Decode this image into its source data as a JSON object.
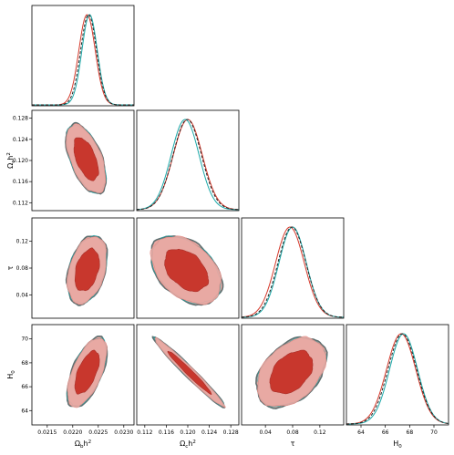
{
  "chart_data": {
    "type": "corner",
    "parameters": [
      {
        "id": "ombh2",
        "label": "Ωbh²",
        "range": [
          0.0212,
          0.0232
        ],
        "ticks": [
          "0.0215",
          "0.0220",
          "0.0225",
          "0.0230"
        ],
        "tick_values": [
          0.0215,
          0.022,
          0.0225,
          0.023
        ]
      },
      {
        "id": "omch2",
        "label": "Ωch²",
        "range": [
          0.1105,
          0.1295
        ],
        "ticks": [
          "0.112",
          "0.116",
          "0.120",
          "0.124",
          "0.128"
        ],
        "tick_values": [
          0.112,
          0.116,
          0.12,
          0.124,
          0.128
        ]
      },
      {
        "id": "tau",
        "label": "τ",
        "range": [
          0.005,
          0.155
        ],
        "ticks": [
          "0.04",
          "0.08",
          "0.12"
        ],
        "tick_values": [
          0.04,
          0.08,
          0.12
        ]
      },
      {
        "id": "H0",
        "label": "H0",
        "range": [
          62.8,
          71.2
        ],
        "ticks": [
          "64",
          "66",
          "68",
          "70"
        ],
        "tick_values": [
          64,
          66,
          68,
          70
        ]
      }
    ],
    "axis_label_text": {
      "ombh2": {
        "base": "Ω",
        "sub": "b",
        "mid": "h",
        "sup": "2"
      },
      "omch2": {
        "base": "Ω",
        "sub": "c",
        "mid": "h",
        "sup": "2"
      },
      "tau": {
        "base": "τ",
        "sub": "",
        "mid": "",
        "sup": ""
      },
      "H0": {
        "base": "H",
        "sub": "0",
        "mid": "",
        "sup": ""
      }
    },
    "marginals": [
      {
        "param": "ombh2",
        "series": [
          {
            "style": "red",
            "mean": 0.02228,
            "sigma": 0.00016
          },
          {
            "style": "cyan",
            "mean": 0.02233,
            "sigma": 0.00015
          },
          {
            "style": "dashed",
            "mean": 0.02231,
            "sigma": 0.000155
          }
        ]
      },
      {
        "param": "omch2",
        "series": [
          {
            "style": "red",
            "mean": 0.12,
            "sigma": 0.0027
          },
          {
            "style": "cyan",
            "mean": 0.1195,
            "sigma": 0.0026
          },
          {
            "style": "dashed",
            "mean": 0.1199,
            "sigma": 0.00265
          }
        ]
      },
      {
        "param": "tau",
        "series": [
          {
            "style": "red",
            "mean": 0.076,
            "sigma": 0.021
          },
          {
            "style": "cyan",
            "mean": 0.08,
            "sigma": 0.02
          },
          {
            "style": "dashed",
            "mean": 0.079,
            "sigma": 0.0205
          }
        ]
      },
      {
        "param": "H0",
        "series": [
          {
            "style": "red",
            "mean": 67.3,
            "sigma": 1.2
          },
          {
            "style": "cyan",
            "mean": 67.5,
            "sigma": 1.15
          },
          {
            "style": "dashed",
            "mean": 67.4,
            "sigma": 1.18
          }
        ]
      }
    ],
    "joint": [
      {
        "x": "ombh2",
        "y": "omch2",
        "mean": [
          0.02226,
          0.1203
        ],
        "sigma": [
          0.00016,
          0.0027
        ],
        "corr": -0.55
      },
      {
        "x": "ombh2",
        "y": "tau",
        "mean": [
          0.02228,
          0.077
        ],
        "sigma": [
          0.00016,
          0.021
        ],
        "corr": 0.35
      },
      {
        "x": "omch2",
        "y": "tau",
        "mean": [
          0.1197,
          0.077
        ],
        "sigma": [
          0.0027,
          0.021
        ],
        "corr": -0.4
      },
      {
        "x": "ombh2",
        "y": "H0",
        "mean": [
          0.02228,
          67.2
        ],
        "sigma": [
          0.00016,
          1.2
        ],
        "corr": 0.6
      },
      {
        "x": "omch2",
        "y": "H0",
        "mean": [
          0.1203,
          67.2
        ],
        "sigma": [
          0.0027,
          1.2
        ],
        "corr": -0.98
      },
      {
        "x": "tau",
        "y": "H0",
        "mean": [
          0.078,
          67.2
        ],
        "sigma": [
          0.021,
          1.2
        ],
        "corr": 0.4
      }
    ],
    "contour_levels": [
      "68%",
      "95%"
    ],
    "colors": {
      "red": "#d63a2c",
      "cyan": "#1aa8a8",
      "dashed": "#222222",
      "inner_fill": "#c8372d",
      "outer_fill": "#e8a9a3",
      "outline": "#5f6f70"
    },
    "grid": false,
    "legend": "none"
  }
}
